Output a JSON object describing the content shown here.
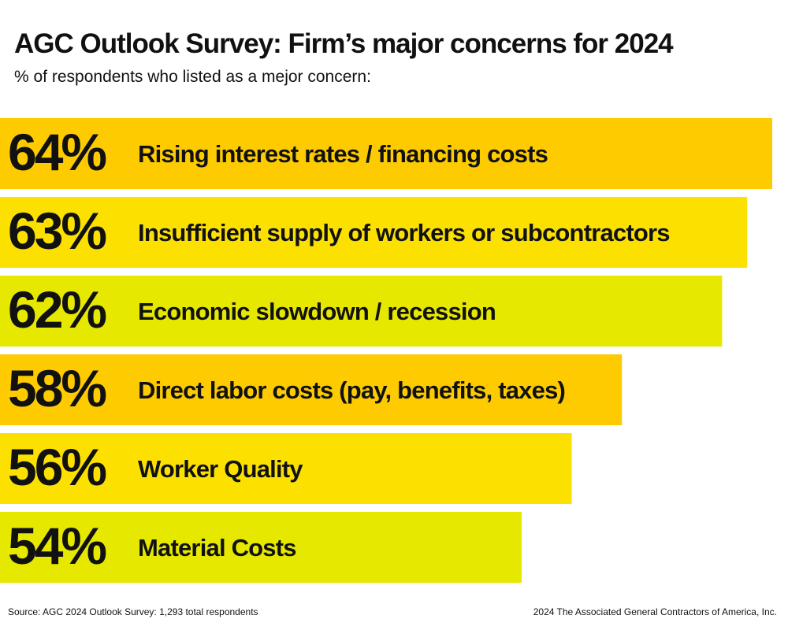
{
  "header": {
    "title": "AGC Outlook Survey: Firm’s major concerns for 2024",
    "subtitle": "% of respondents who listed as a mejor concern:"
  },
  "chart_data": {
    "type": "bar",
    "orientation": "horizontal",
    "categories": [
      "Rising interest rates / financing costs",
      "Insufficient supply of workers or subcontractors",
      "Economic slowdown / recession",
      "Direct labor costs (pay, benefits, taxes)",
      "Worker Quality",
      "Material Costs"
    ],
    "values": [
      64,
      63,
      62,
      58,
      56,
      54
    ],
    "value_labels": [
      "64%",
      "63%",
      "62%",
      "58%",
      "56%",
      "54%"
    ],
    "bar_colors": [
      "#FDCB00",
      "#FCE100",
      "#E7E800",
      "#FDCB00",
      "#FCE100",
      "#E7E800"
    ],
    "grid": false,
    "legend": "none"
  },
  "footer": {
    "source": "Source: AGC 2024 Outlook Survey: 1,293 total respondents",
    "copyright": "2024 The Associated General Contractors of America, Inc."
  }
}
